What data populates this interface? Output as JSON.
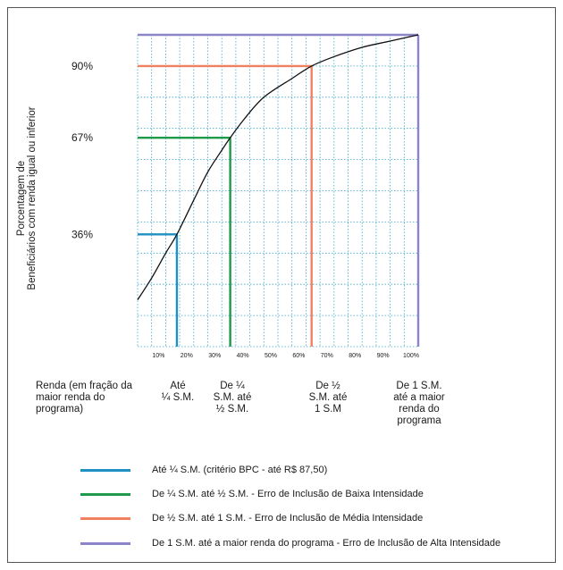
{
  "chart_data": {
    "type": "line",
    "ylabel": "Porcentagem de\nBeneficiários com renda igual ou inferior",
    "xlabel": "Renda (em fração da maior renda do programa)",
    "x_ticks": [
      "10%",
      "20%",
      "30%",
      "40%",
      "50%",
      "60%",
      "70%",
      "80%",
      "90%",
      "100%"
    ],
    "y_ticks": [
      "36%",
      "67%",
      "90%"
    ],
    "xlim": [
      0,
      100
    ],
    "ylim": [
      0,
      100
    ],
    "grid": true,
    "curve": {
      "x": [
        0,
        5,
        10,
        14,
        20,
        25,
        30,
        33,
        38,
        45,
        55,
        62,
        70,
        80,
        90,
        100
      ],
      "y": [
        15,
        22,
        30,
        36,
        47,
        56,
        63,
        67,
        73,
        80,
        86,
        90,
        93,
        96,
        98,
        100
      ]
    },
    "thresholds": [
      {
        "x": 14,
        "y": 36,
        "color": "#1f8fc4"
      },
      {
        "x": 33,
        "y": 67,
        "color": "#1e9a4a"
      },
      {
        "x": 62,
        "y": 90,
        "color": "#f08060"
      },
      {
        "x": 100,
        "y": 100,
        "color": "#8c84c8"
      }
    ],
    "categories": [
      {
        "text": "Até\n¼ S.M."
      },
      {
        "text": "De ¼\nS.M. até\n½ S.M."
      },
      {
        "text": "De ½\nS.M. até\n1 S.M"
      },
      {
        "text": "De 1 S.M.\naté a maior\nrenda do\nprograma"
      }
    ],
    "xlabel_lines": [
      "Renda (em fração da",
      "maior renda do",
      "programa)"
    ],
    "legend": [
      {
        "label": "Até ¼ S.M. (critério BPC - até R$ 87,50)",
        "color": "#1f8fc4"
      },
      {
        "label": "De ¼ S.M. até ½ S.M. - Erro de Inclusão de Baixa Intensidade",
        "color": "#1e9a4a"
      },
      {
        "label": "De ½ S.M. até 1 S.M. - Erro de Inclusão de Média Intensidade",
        "color": "#f08060"
      },
      {
        "label": "De 1 S.M. até a maior renda do programa - Erro de Inclusão de Alta Intensidade",
        "color": "#8c84c8"
      }
    ],
    "colors": {
      "grid": "#3aa6cc",
      "curve": "#111111"
    }
  }
}
